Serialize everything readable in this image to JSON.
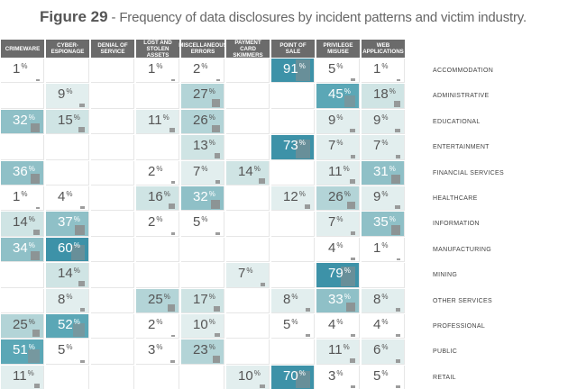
{
  "figure": {
    "label": "Figure 29",
    "separator": " - ",
    "description": "Frequency of data disclosures by incident patterns and victim industry."
  },
  "colors": {
    "scale": [
      "#ffffff",
      "#e2eeee",
      "#cfe4e4",
      "#b3d4d7",
      "#8fc0c7",
      "#5ba7b6",
      "#3d92a8"
    ],
    "header_bg": "#6b6b6b",
    "bar": "#8c8c8c"
  },
  "chart_data": {
    "type": "heatmap",
    "value_unit": "%",
    "columns": [
      "CRIMEWARE",
      "CYBER-ESPIONAGE",
      "DENIAL OF SERVICE",
      "LOST AND STOLEN ASSETS",
      "MISCELLANEOUS ERRORS",
      "PAYMENT CARD SKIMMERS",
      "POINT OF SALE",
      "PRIVILEGE MISUSE",
      "WEB APPLICATIONS"
    ],
    "rows": [
      "ACCOMMODATION",
      "ADMINISTRATIVE",
      "EDUCATIONAL",
      "ENTERTAINMENT",
      "FINANCIAL SERVICES",
      "HEALTHCARE",
      "INFORMATION",
      "MANUFACTURING",
      "MINING",
      "OTHER SERVICES",
      "PROFESSIONAL",
      "PUBLIC",
      "RETAIL"
    ],
    "values": [
      [
        1,
        null,
        null,
        1,
        2,
        null,
        91,
        5,
        1
      ],
      [
        null,
        9,
        null,
        null,
        27,
        null,
        null,
        45,
        18
      ],
      [
        32,
        15,
        null,
        11,
        26,
        null,
        null,
        9,
        9
      ],
      [
        null,
        null,
        null,
        null,
        13,
        null,
        73,
        7,
        7
      ],
      [
        36,
        null,
        null,
        2,
        7,
        14,
        null,
        11,
        31
      ],
      [
        1,
        4,
        null,
        16,
        32,
        null,
        12,
        26,
        9
      ],
      [
        14,
        37,
        null,
        2,
        5,
        null,
        null,
        7,
        35
      ],
      [
        34,
        60,
        null,
        null,
        null,
        null,
        null,
        4,
        1
      ],
      [
        null,
        14,
        null,
        null,
        null,
        7,
        null,
        79,
        null
      ],
      [
        null,
        8,
        null,
        25,
        17,
        null,
        8,
        33,
        8
      ],
      [
        25,
        52,
        null,
        2,
        10,
        null,
        5,
        4,
        4
      ],
      [
        51,
        5,
        null,
        3,
        23,
        null,
        null,
        11,
        6
      ],
      [
        11,
        null,
        null,
        null,
        null,
        10,
        70,
        3,
        5
      ]
    ]
  }
}
